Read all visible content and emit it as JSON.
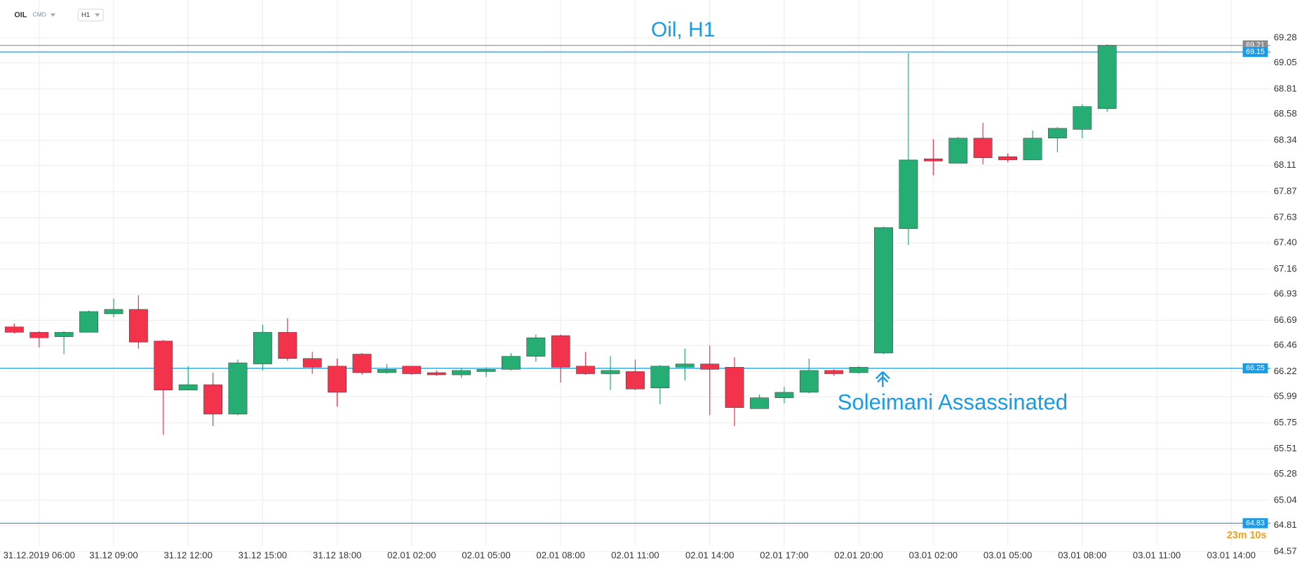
{
  "chart_data": {
    "type": "candlestick",
    "symbol": "OIL",
    "market": "CMD",
    "interval": "H1",
    "title": "Oil, H1",
    "annotation": "Soleimani Assassinated",
    "countdown": "23m 10s",
    "title_color": "#1a9be6",
    "up_color": "#26ad74",
    "down_color": "#f2334b",
    "grid": true,
    "categories": [
      null,
      "31.12.2019 06:00",
      null,
      null,
      "31.12 09:00",
      null,
      null,
      "31.12 12:00",
      null,
      null,
      "31.12 15:00",
      null,
      null,
      "31.12 18:00",
      null,
      null,
      "02.01 02:00",
      null,
      null,
      "02.01 05:00",
      null,
      null,
      "02.01 08:00",
      null,
      null,
      "02.01 11:00",
      null,
      null,
      "02.01 14:00",
      null,
      null,
      "02.01 17:00",
      null,
      null,
      "02.01 20:00",
      null,
      null,
      "03.01 02:00",
      null,
      null,
      "03.01 05:00",
      null,
      null,
      "03.01 08:00",
      null,
      null,
      "03.01 11:00",
      null,
      null,
      "03.01 14:00"
    ],
    "open": [
      66.63,
      66.58,
      66.54,
      66.58,
      66.75,
      66.79,
      66.5,
      66.05,
      66.1,
      65.83,
      66.29,
      66.58,
      66.34,
      66.27,
      66.38,
      66.21,
      66.27,
      66.21,
      66.19,
      66.22,
      66.24,
      66.36,
      66.55,
      66.27,
      66.2,
      66.22,
      66.07,
      66.26,
      66.29,
      66.26,
      65.88,
      65.98,
      66.03,
      66.23,
      66.21,
      66.39,
      67.53,
      68.17,
      68.13,
      68.36,
      68.19,
      68.16,
      68.36,
      68.44,
      68.63,
      null,
      null,
      null,
      null,
      null
    ],
    "high": [
      66.66,
      66.59,
      66.59,
      66.78,
      66.89,
      66.92,
      66.51,
      66.27,
      66.21,
      66.33,
      66.65,
      66.71,
      66.4,
      66.34,
      66.39,
      66.29,
      66.27,
      66.23,
      66.25,
      66.26,
      66.39,
      66.56,
      66.56,
      66.4,
      66.36,
      66.33,
      66.28,
      66.43,
      66.46,
      66.35,
      66.01,
      66.08,
      66.34,
      66.24,
      66.27,
      67.55,
      69.14,
      68.35,
      68.37,
      68.5,
      68.22,
      68.43,
      68.46,
      68.67,
      69.22,
      null,
      null,
      null,
      null,
      null
    ],
    "low": [
      66.57,
      66.44,
      66.38,
      66.58,
      66.72,
      66.43,
      65.64,
      66.05,
      65.72,
      65.82,
      66.23,
      66.32,
      66.2,
      65.9,
      66.19,
      66.2,
      66.19,
      66.18,
      66.16,
      66.17,
      66.23,
      66.31,
      66.12,
      66.19,
      66.05,
      66.05,
      65.92,
      66.14,
      65.82,
      65.72,
      65.88,
      65.93,
      66.02,
      66.18,
      66.2,
      66.38,
      67.38,
      68.02,
      68.13,
      68.12,
      68.14,
      68.16,
      68.23,
      68.36,
      68.6,
      null,
      null,
      null,
      null,
      null
    ],
    "close": [
      66.58,
      66.53,
      66.58,
      66.77,
      66.79,
      66.49,
      66.05,
      66.1,
      65.83,
      66.3,
      66.58,
      66.34,
      66.26,
      66.03,
      66.21,
      66.24,
      66.2,
      66.19,
      66.23,
      66.24,
      66.36,
      66.53,
      66.26,
      66.2,
      66.23,
      66.06,
      66.27,
      66.29,
      66.24,
      65.89,
      65.98,
      66.03,
      66.23,
      66.2,
      66.26,
      67.54,
      68.16,
      68.15,
      68.36,
      68.18,
      68.16,
      68.36,
      68.45,
      68.65,
      69.21,
      null,
      null,
      null,
      null,
      null
    ],
    "ylim": [
      64.57,
      69.28
    ],
    "yticks": [
      69.28,
      69.05,
      68.81,
      68.58,
      68.34,
      68.11,
      67.87,
      67.63,
      {
        "value": 67.4,
        "label": "67.40"
      },
      67.16,
      66.93,
      66.69,
      66.46,
      66.22,
      65.99,
      65.75,
      65.51,
      65.28,
      65.04,
      64.81,
      64.57
    ],
    "price_lines": [
      {
        "value": 69.21,
        "color": "#8c8c8c"
      },
      {
        "value": 69.15,
        "color": "#1a9be6"
      },
      {
        "value": 66.25,
        "color": "#1a9be6"
      },
      {
        "value": 64.83,
        "color": "#1a9be6"
      }
    ]
  }
}
